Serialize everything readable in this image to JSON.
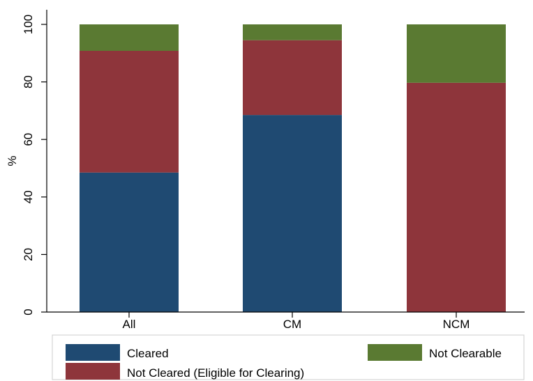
{
  "chart_data": {
    "type": "bar",
    "stacked": true,
    "categories": [
      "All",
      "CM",
      "NCM"
    ],
    "series": [
      {
        "name": "Cleared",
        "color": "#1f4a72",
        "values": [
          48.5,
          68.5,
          0
        ]
      },
      {
        "name": "Not Cleared (Eligible for Clearing)",
        "color": "#8e353b",
        "values": [
          42.3,
          26.0,
          79.7
        ]
      },
      {
        "name": "Not Clearable",
        "color": "#5a7a32",
        "values": [
          9.2,
          5.5,
          20.3
        ]
      }
    ],
    "title": "",
    "xlabel": "",
    "ylabel": "%",
    "ylim": [
      0,
      100
    ],
    "yticks": [
      "0",
      "20",
      "40",
      "60",
      "80",
      "100"
    ],
    "grid": false,
    "legend_position": "bottom"
  }
}
